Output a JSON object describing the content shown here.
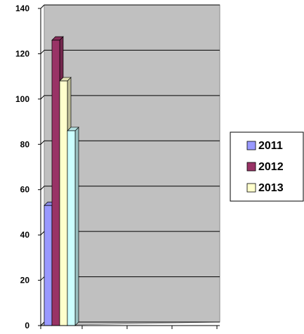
{
  "chart_data": {
    "type": "bar",
    "categories": [
      ""
    ],
    "series": [
      {
        "name": "2011",
        "values": [
          53
        ]
      },
      {
        "name": "2012",
        "values": [
          126
        ]
      },
      {
        "name": "2013",
        "values": [
          108
        ]
      },
      {
        "name": "",
        "values": [
          86
        ]
      }
    ],
    "ylim": [
      0,
      140
    ],
    "yticks": [
      0,
      20,
      40,
      60,
      80,
      100,
      120,
      140
    ],
    "grid": true,
    "three_d": true,
    "legend_position": "right",
    "colors": {
      "plot_background": "#c0c0c0",
      "gridline": "#000000",
      "series": [
        "#9999ff",
        "#993366",
        "#ffffcc",
        "#ccffff"
      ]
    }
  }
}
